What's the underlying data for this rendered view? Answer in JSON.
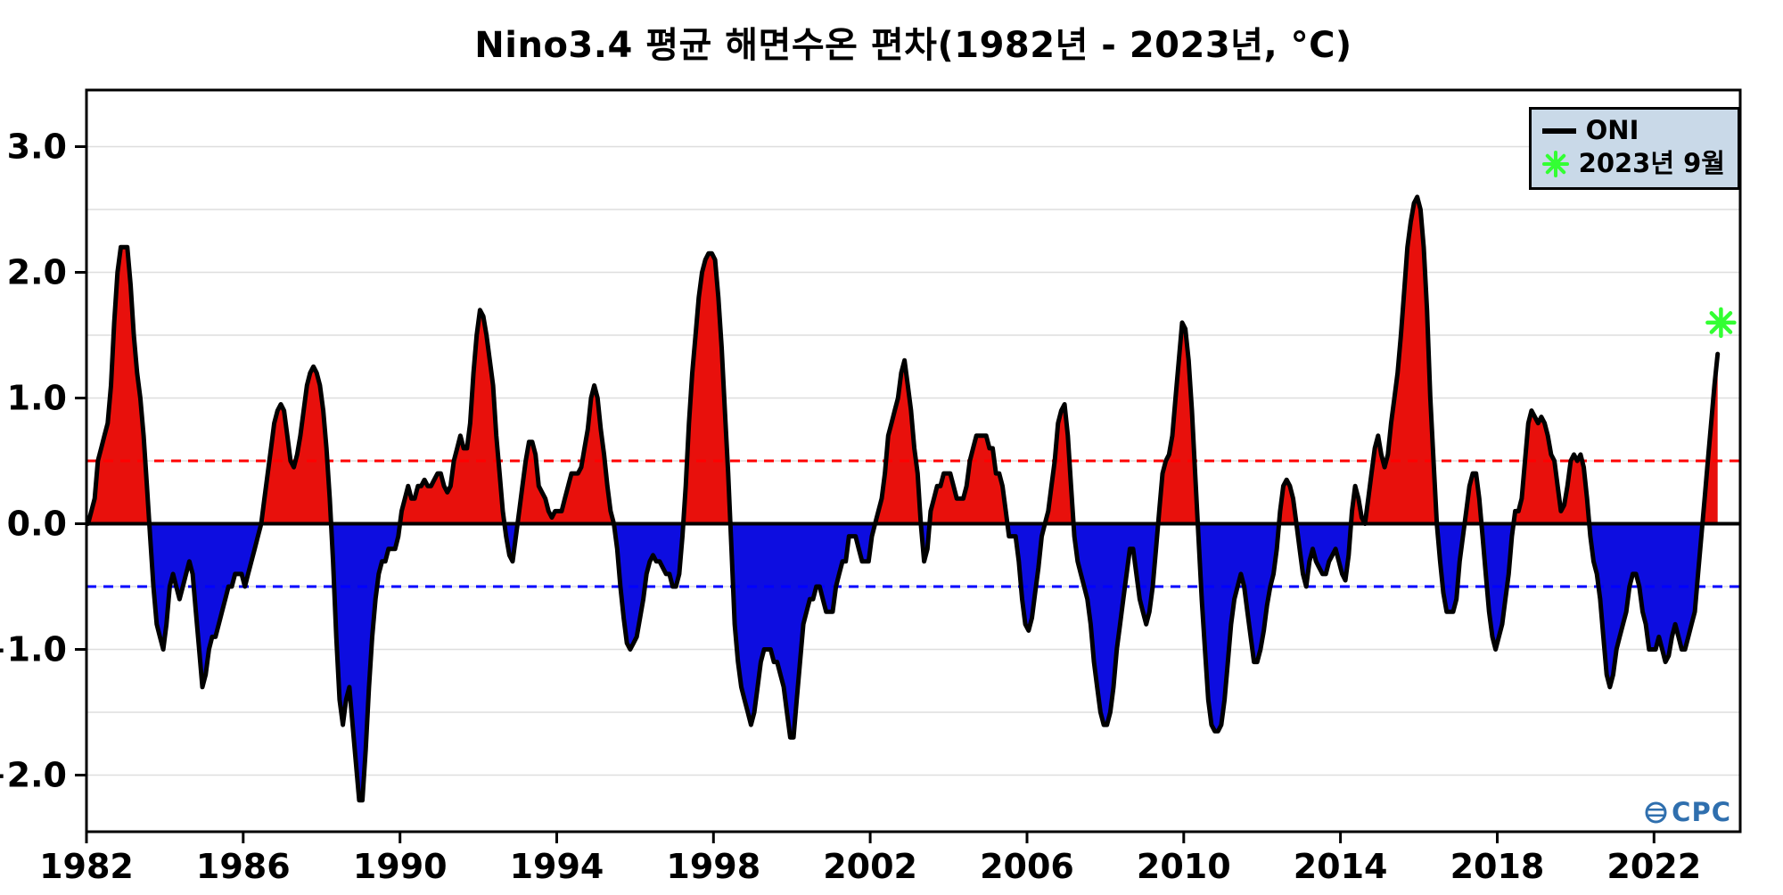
{
  "branding": {
    "logo_text": "CPC"
  },
  "chart_data": {
    "type": "area",
    "title": "Nino3.4 평균 해면수온 편차(1982년 - 2023년, °C)",
    "xlabel": "",
    "ylabel": "",
    "xlim": [
      1982,
      2024.2
    ],
    "ylim": [
      -2.45,
      3.45
    ],
    "x_ticks": [
      1982,
      1986,
      1990,
      1994,
      1998,
      2002,
      2006,
      2010,
      2014,
      2018,
      2022
    ],
    "y_ticks": [
      -2.0,
      -1.0,
      0.0,
      1.0,
      2.0,
      3.0
    ],
    "grid": true,
    "legend_position": "upper right",
    "thresholds": {
      "el_nino": 0.5,
      "la_nina": -0.5
    },
    "colors": {
      "positive_fill": "#e8100c",
      "negative_fill": "#0d0de0",
      "oni_line": "#000000",
      "el_nino_dash": "#ff0000",
      "la_nina_dash": "#0000ff",
      "marker": "#33ff33",
      "legend_bg": "#c9d9e8",
      "grid_line": "#dedede"
    },
    "legend": [
      {
        "label": "ONI",
        "symbol": "line",
        "color": "#000000"
      },
      {
        "label": "2023년 9월",
        "symbol": "asterisk",
        "color": "#33ff33"
      }
    ],
    "marker": {
      "label": "2023년 9월",
      "x": 2023.708,
      "value": 1.6,
      "symbol": "asterisk"
    },
    "series": [
      {
        "name": "ONI",
        "cadence": "monthly",
        "start": "1982-01",
        "values_by_year": {
          "1982": [
            0.0,
            0.1,
            0.2,
            0.5,
            0.6,
            0.7,
            0.8,
            1.1,
            1.6,
            2.0,
            2.2,
            2.2
          ],
          "1983": [
            2.2,
            1.9,
            1.5,
            1.2,
            1.0,
            0.7,
            0.3,
            -0.1,
            -0.5,
            -0.8,
            -0.9,
            -1.0
          ],
          "1984": [
            -0.8,
            -0.5,
            -0.4,
            -0.5,
            -0.6,
            -0.5,
            -0.4,
            -0.3,
            -0.4,
            -0.7,
            -1.0,
            -1.3
          ],
          "1985": [
            -1.2,
            -1.0,
            -0.9,
            -0.9,
            -0.8,
            -0.7,
            -0.6,
            -0.5,
            -0.5,
            -0.4,
            -0.4,
            -0.4
          ],
          "1986": [
            -0.5,
            -0.4,
            -0.3,
            -0.2,
            -0.1,
            0.0,
            0.2,
            0.4,
            0.6,
            0.8,
            0.9,
            0.95
          ],
          "1987": [
            0.9,
            0.7,
            0.5,
            0.45,
            0.55,
            0.7,
            0.9,
            1.1,
            1.2,
            1.25,
            1.2,
            1.1
          ],
          "1988": [
            0.9,
            0.6,
            0.2,
            -0.3,
            -0.9,
            -1.4,
            -1.6,
            -1.4,
            -1.3,
            -1.6,
            -1.9,
            -2.2
          ],
          "1989": [
            -2.2,
            -1.8,
            -1.3,
            -0.9,
            -0.6,
            -0.4,
            -0.3,
            -0.3,
            -0.2,
            -0.2,
            -0.2,
            -0.1
          ],
          "1990": [
            0.1,
            0.2,
            0.3,
            0.2,
            0.2,
            0.3,
            0.3,
            0.35,
            0.3,
            0.3,
            0.35,
            0.4
          ],
          "1991": [
            0.4,
            0.3,
            0.25,
            0.3,
            0.5,
            0.6,
            0.7,
            0.6,
            0.6,
            0.8,
            1.2,
            1.5
          ],
          "1992": [
            1.7,
            1.65,
            1.5,
            1.3,
            1.1,
            0.7,
            0.4,
            0.1,
            -0.1,
            -0.25,
            -0.3,
            -0.1
          ],
          "1993": [
            0.1,
            0.3,
            0.5,
            0.65,
            0.65,
            0.55,
            0.3,
            0.25,
            0.2,
            0.1,
            0.05,
            0.1
          ],
          "1994": [
            0.1,
            0.1,
            0.2,
            0.3,
            0.4,
            0.4,
            0.4,
            0.45,
            0.6,
            0.75,
            1.0,
            1.1
          ],
          "1995": [
            1.0,
            0.75,
            0.55,
            0.3,
            0.1,
            0.0,
            -0.2,
            -0.5,
            -0.75,
            -0.95,
            -1.0,
            -0.95
          ],
          "1996": [
            -0.9,
            -0.75,
            -0.6,
            -0.4,
            -0.3,
            -0.25,
            -0.3,
            -0.3,
            -0.35,
            -0.4,
            -0.4,
            -0.5
          ],
          "1997": [
            -0.5,
            -0.4,
            -0.1,
            0.3,
            0.8,
            1.2,
            1.5,
            1.8,
            2.0,
            2.1,
            2.15,
            2.15
          ],
          "1998": [
            2.1,
            1.8,
            1.4,
            0.9,
            0.4,
            -0.2,
            -0.8,
            -1.1,
            -1.3,
            -1.4,
            -1.5,
            -1.6
          ],
          "1999": [
            -1.5,
            -1.3,
            -1.1,
            -1.0,
            -1.0,
            -1.0,
            -1.1,
            -1.1,
            -1.2,
            -1.3,
            -1.5,
            -1.7
          ],
          "2000": [
            -1.7,
            -1.4,
            -1.1,
            -0.8,
            -0.7,
            -0.6,
            -0.6,
            -0.5,
            -0.5,
            -0.6,
            -0.7,
            -0.7
          ],
          "2001": [
            -0.7,
            -0.5,
            -0.4,
            -0.3,
            -0.3,
            -0.1,
            -0.1,
            -0.1,
            -0.2,
            -0.3,
            -0.3,
            -0.3
          ],
          "2002": [
            -0.1,
            0.0,
            0.1,
            0.2,
            0.4,
            0.7,
            0.8,
            0.9,
            1.0,
            1.2,
            1.3,
            1.1
          ],
          "2003": [
            0.9,
            0.6,
            0.4,
            0.0,
            -0.3,
            -0.2,
            0.1,
            0.2,
            0.3,
            0.3,
            0.4,
            0.4
          ],
          "2004": [
            0.4,
            0.3,
            0.2,
            0.2,
            0.2,
            0.3,
            0.5,
            0.6,
            0.7,
            0.7,
            0.7,
            0.7
          ],
          "2005": [
            0.6,
            0.6,
            0.4,
            0.4,
            0.3,
            0.1,
            -0.1,
            -0.1,
            -0.1,
            -0.3,
            -0.6,
            -0.8
          ],
          "2006": [
            -0.85,
            -0.75,
            -0.55,
            -0.35,
            -0.1,
            0.0,
            0.1,
            0.3,
            0.5,
            0.8,
            0.9,
            0.95
          ],
          "2007": [
            0.7,
            0.3,
            -0.1,
            -0.3,
            -0.4,
            -0.5,
            -0.6,
            -0.8,
            -1.1,
            -1.3,
            -1.5,
            -1.6
          ],
          "2008": [
            -1.6,
            -1.5,
            -1.3,
            -1.0,
            -0.8,
            -0.6,
            -0.4,
            -0.2,
            -0.2,
            -0.4,
            -0.6,
            -0.7
          ],
          "2009": [
            -0.8,
            -0.7,
            -0.5,
            -0.2,
            0.1,
            0.4,
            0.5,
            0.55,
            0.7,
            1.0,
            1.3,
            1.6
          ],
          "2010": [
            1.55,
            1.3,
            0.9,
            0.4,
            -0.1,
            -0.6,
            -1.0,
            -1.4,
            -1.6,
            -1.65,
            -1.65,
            -1.6
          ],
          "2011": [
            -1.4,
            -1.1,
            -0.8,
            -0.6,
            -0.5,
            -0.4,
            -0.5,
            -0.7,
            -0.9,
            -1.1,
            -1.1,
            -1.0
          ],
          "2012": [
            -0.85,
            -0.65,
            -0.5,
            -0.4,
            -0.2,
            0.1,
            0.3,
            0.35,
            0.3,
            0.2,
            0.0,
            -0.2
          ],
          "2013": [
            -0.4,
            -0.5,
            -0.3,
            -0.2,
            -0.3,
            -0.35,
            -0.4,
            -0.4,
            -0.3,
            -0.25,
            -0.2,
            -0.3
          ],
          "2014": [
            -0.4,
            -0.45,
            -0.25,
            0.1,
            0.3,
            0.2,
            0.05,
            0.0,
            0.2,
            0.4,
            0.6,
            0.7
          ],
          "2015": [
            0.55,
            0.45,
            0.55,
            0.8,
            1.0,
            1.2,
            1.5,
            1.85,
            2.2,
            2.4,
            2.55,
            2.6
          ],
          "2016": [
            2.5,
            2.2,
            1.7,
            1.0,
            0.5,
            0.0,
            -0.3,
            -0.55,
            -0.7,
            -0.7,
            -0.7,
            -0.6
          ],
          "2017": [
            -0.3,
            -0.1,
            0.1,
            0.3,
            0.4,
            0.4,
            0.2,
            -0.1,
            -0.4,
            -0.7,
            -0.9,
            -1.0
          ],
          "2018": [
            -0.9,
            -0.8,
            -0.6,
            -0.4,
            -0.1,
            0.1,
            0.1,
            0.2,
            0.5,
            0.8,
            0.9,
            0.85
          ],
          "2019": [
            0.8,
            0.85,
            0.8,
            0.7,
            0.55,
            0.5,
            0.3,
            0.1,
            0.15,
            0.3,
            0.5,
            0.55
          ],
          "2020": [
            0.5,
            0.55,
            0.45,
            0.2,
            -0.1,
            -0.3,
            -0.4,
            -0.6,
            -0.9,
            -1.2,
            -1.3,
            -1.2
          ],
          "2021": [
            -1.0,
            -0.9,
            -0.8,
            -0.7,
            -0.5,
            -0.4,
            -0.4,
            -0.5,
            -0.7,
            -0.8,
            -1.0,
            -1.0
          ],
          "2022": [
            -1.0,
            -0.9,
            -1.0,
            -1.1,
            -1.05,
            -0.9,
            -0.8,
            -0.9,
            -1.0,
            -1.0,
            -0.9,
            -0.8
          ],
          "2023": [
            -0.7,
            -0.4,
            -0.1,
            0.2,
            0.5,
            0.8,
            1.1,
            1.35
          ]
        }
      }
    ]
  }
}
